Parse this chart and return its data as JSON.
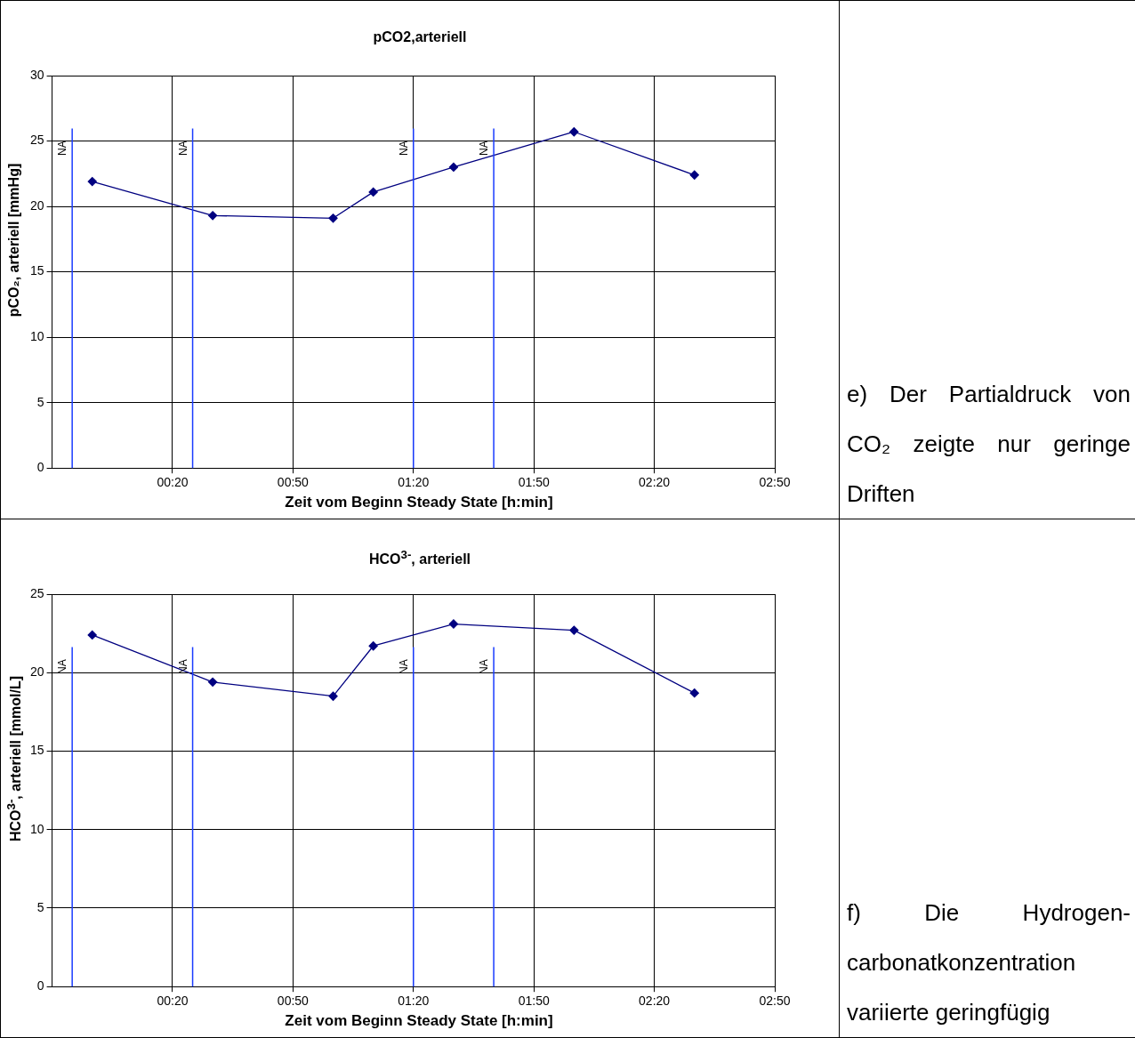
{
  "chart_data": [
    {
      "type": "line",
      "title": "pCO2,arteriell",
      "xlabel": "Zeit vom Beginn Steady State [h:min]",
      "ylabel": "pCO₂, arteriell [mmHg]",
      "x": [
        0,
        0.5,
        1,
        1.1667,
        1.5,
        2,
        2.5
      ],
      "series": [
        {
          "color": "#000080",
          "values": [
            21.9,
            19.3,
            19.1,
            21.1,
            23.0,
            25.7,
            22.4
          ]
        }
      ],
      "xlim": [
        -0.1667,
        2.8333
      ],
      "xticks": [
        {
          "value": 0.3333,
          "label": "00:20"
        },
        {
          "value": 0.8333,
          "label": "00:50"
        },
        {
          "value": 1.3333,
          "label": "01:20"
        },
        {
          "value": 1.8333,
          "label": "01:50"
        },
        {
          "value": 2.3333,
          "label": "02:20"
        },
        {
          "value": 2.8333,
          "label": "02:50"
        }
      ],
      "ylim": [
        0,
        30
      ],
      "yticks": [
        0,
        5,
        10,
        15,
        20,
        25,
        30
      ],
      "ref_lines": [
        {
          "axis": "x",
          "value": -0.0833,
          "label": "NA",
          "color": "#1a3cff"
        },
        {
          "axis": "x",
          "value": 0.4167,
          "label": "NA",
          "color": "#1a3cff"
        },
        {
          "axis": "x",
          "value": 1.3333,
          "label": "NA",
          "color": "#1a3cff"
        },
        {
          "axis": "x",
          "value": 1.6667,
          "label": "NA",
          "color": "#1a3cff"
        }
      ],
      "grid": true,
      "legend": false,
      "marker": "diamond",
      "line_style": "solid",
      "annotations": [
        "e) Der Partialdruck von CO₂ zeigte nur geringe Driften"
      ]
    },
    {
      "type": "line",
      "title": "HCO$^{3-}$, arteriell",
      "xlabel": "Zeit vom Beginn Steady State [h:min]",
      "ylabel": "HCO$^{3-}$, arteriell [mmol/L]",
      "x": [
        0,
        0.5,
        1,
        1.1667,
        1.5,
        2,
        2.5
      ],
      "series": [
        {
          "color": "#000080",
          "values": [
            22.4,
            19.4,
            18.5,
            21.7,
            23.1,
            22.7,
            18.7
          ]
        }
      ],
      "xlim": [
        -0.1667,
        2.8333
      ],
      "xticks": [
        {
          "value": 0.3333,
          "label": "00:20"
        },
        {
          "value": 0.8333,
          "label": "00:50"
        },
        {
          "value": 1.3333,
          "label": "01:20"
        },
        {
          "value": 1.8333,
          "label": "01:50"
        },
        {
          "value": 2.3333,
          "label": "02:20"
        },
        {
          "value": 2.8333,
          "label": "02:50"
        }
      ],
      "ylim": [
        0,
        25
      ],
      "yticks": [
        0,
        5,
        10,
        15,
        20,
        25
      ],
      "ref_lines": [
        {
          "axis": "x",
          "value": -0.0833,
          "label": "NA",
          "color": "#1a3cff"
        },
        {
          "axis": "x",
          "value": 0.4167,
          "label": "NA",
          "color": "#1a3cff"
        },
        {
          "axis": "x",
          "value": 1.3333,
          "label": "NA",
          "color": "#1a3cff"
        },
        {
          "axis": "x",
          "value": 1.6667,
          "label": "NA",
          "color": "#1a3cff"
        }
      ],
      "grid": true,
      "legend": false,
      "marker": "diamond",
      "line_style": "solid",
      "annotations": [
        "f) Die Hydrogen-carbonatkonzentration variierte geringfügig"
      ]
    }
  ]
}
